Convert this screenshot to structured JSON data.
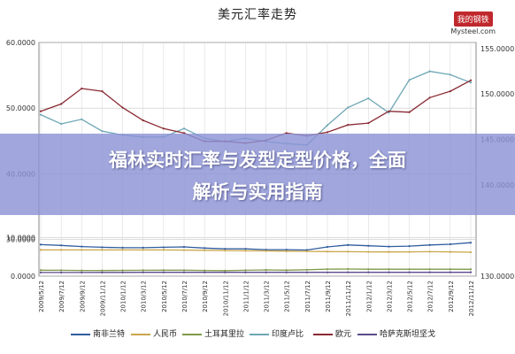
{
  "chart_data": {
    "type": "line",
    "title": "美元汇率走势",
    "y_left": {
      "ticks": [
        "60.0000",
        "50.0000",
        "40.0000",
        "30.0000",
        "10.0000",
        "0.0000"
      ]
    },
    "y_right": {
      "ticks": [
        "155.0000",
        "150.0000",
        "145.0000",
        "140.0000",
        "130.0000"
      ]
    },
    "x_ticks": [
      "2009/5/12",
      "2009/7/12",
      "2009/9/12",
      "2009/11/12",
      "2010/1/12",
      "2010/3/12",
      "2010/5/12",
      "2010/7/12",
      "2010/9/12",
      "2010/11/12",
      "2011/1/12",
      "2011/3/12",
      "2011/5/12",
      "2011/7/12",
      "2011/9/12",
      "2011/11/12",
      "2012/1/12",
      "2012/3/12",
      "2012/5/12",
      "2012/7/12",
      "2012/9/12",
      "2012/11/12"
    ],
    "grid": true,
    "legend_position": "bottom",
    "series": [
      {
        "name": "南非兰特",
        "color": "#2f5c9e",
        "axis": "left",
        "values": [
          8.2,
          8.0,
          7.7,
          7.5,
          7.4,
          7.4,
          7.5,
          7.6,
          7.3,
          7.1,
          7.1,
          6.9,
          6.9,
          6.8,
          7.6,
          8.1,
          7.9,
          7.7,
          7.8,
          8.1,
          8.3,
          8.7
        ]
      },
      {
        "name": "人民币",
        "color": "#c9a54a",
        "axis": "left",
        "values": [
          6.83,
          6.83,
          6.83,
          6.83,
          6.83,
          6.83,
          6.82,
          6.78,
          6.72,
          6.65,
          6.6,
          6.56,
          6.49,
          6.45,
          6.38,
          6.36,
          6.31,
          6.3,
          6.32,
          6.35,
          6.31,
          6.23
        ]
      },
      {
        "name": "土耳其里拉",
        "color": "#7f9a4a",
        "axis": "left",
        "values": [
          1.55,
          1.52,
          1.48,
          1.47,
          1.49,
          1.53,
          1.55,
          1.54,
          1.47,
          1.42,
          1.52,
          1.61,
          1.55,
          1.66,
          1.81,
          1.84,
          1.8,
          1.79,
          1.8,
          1.8,
          1.79,
          1.78
        ]
      },
      {
        "name": "印度卢比",
        "color": "#6ea7b5",
        "axis": "left",
        "values": [
          49.0,
          47.6,
          48.3,
          46.5,
          45.9,
          45.6,
          45.6,
          46.9,
          45.4,
          44.9,
          45.4,
          44.9,
          44.6,
          44.4,
          47.4,
          50.1,
          51.5,
          49.3,
          54.3,
          55.6,
          55.1,
          53.9
        ]
      },
      {
        "name": "欧元",
        "color": "#8a2a33",
        "axis": "right",
        "values": [
          148.1,
          148.9,
          150.6,
          150.3,
          148.5,
          147.1,
          146.2,
          145.7,
          144.8,
          144.8,
          144.6,
          144.9,
          145.7,
          145.4,
          145.8,
          146.6,
          146.8,
          148.1,
          148.0,
          149.6,
          150.3,
          151.5
        ]
      },
      {
        "name": "哈萨克斯坦坚戈",
        "color": "#5b4a8a",
        "axis": "left",
        "values": [
          0.94,
          0.95,
          0.95,
          0.96,
          0.97,
          0.99,
          0.99,
          0.99,
          0.98,
          0.98,
          0.98,
          0.98,
          0.98,
          0.99,
          0.99,
          1.0,
          1.0,
          1.0,
          1.0,
          1.0,
          1.0,
          1.0
        ]
      }
    ]
  },
  "brand": {
    "badge": "我的钢铁",
    "site": "Mysteel.com"
  },
  "overlay": {
    "line1": "福林实时汇率与发型定型价格，全面",
    "line2": "解析与实用指南"
  }
}
